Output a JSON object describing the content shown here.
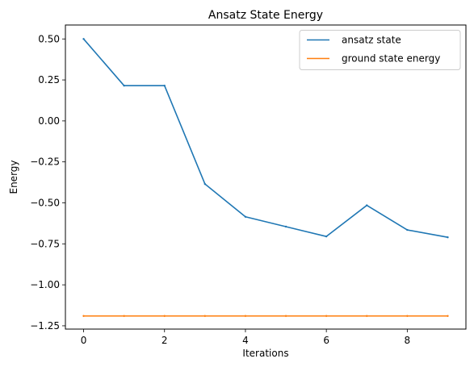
{
  "chart_data": {
    "type": "line",
    "title": "Ansatz State Energy",
    "xlabel": "Iterations",
    "ylabel": "Energy",
    "xlim": [
      -0.45,
      9.45
    ],
    "ylim": [
      -1.27,
      0.585
    ],
    "xticks": [
      0,
      2,
      4,
      6,
      8
    ],
    "xtick_labels": [
      "0",
      "2",
      "4",
      "6",
      "8"
    ],
    "yticks": [
      0.5,
      0.25,
      0.0,
      -0.25,
      -0.5,
      -0.75,
      -1.0,
      -1.25
    ],
    "ytick_labels": [
      "0.50",
      "0.25",
      "0.00",
      "−0.25",
      "−0.50",
      "−0.75",
      "−1.00",
      "−1.25"
    ],
    "grid": false,
    "legend_position": "top-right",
    "x": [
      0,
      1,
      2,
      3,
      4,
      5,
      6,
      7,
      8,
      9
    ],
    "series": [
      {
        "name": "ansatz state",
        "color": "#1f77b4",
        "values": [
          0.5,
          0.215,
          0.215,
          -0.385,
          -0.585,
          -0.645,
          -0.705,
          -0.515,
          -0.665,
          -0.71
        ]
      },
      {
        "name": "ground state energy",
        "color": "#ff7f0e",
        "values": [
          -1.19,
          -1.19,
          -1.19,
          -1.19,
          -1.19,
          -1.19,
          -1.19,
          -1.19,
          -1.19,
          -1.19
        ]
      }
    ]
  }
}
